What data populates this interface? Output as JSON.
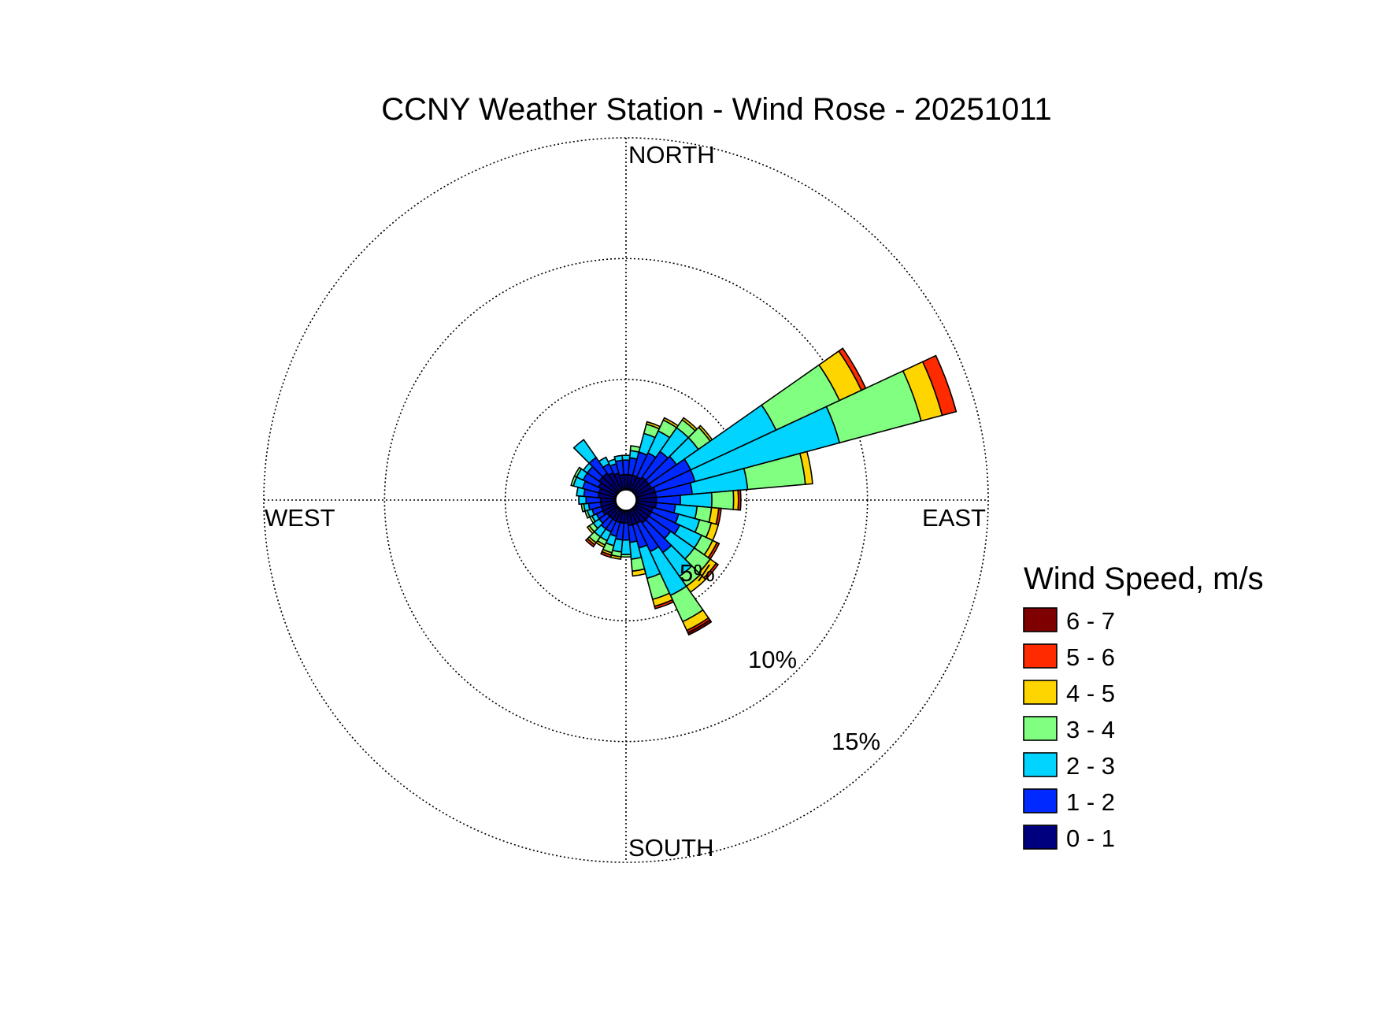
{
  "chart_data": {
    "type": "windrose",
    "title": "CCNY Weather Station - Wind Rose - 20251011",
    "directions": {
      "north": "NORTH",
      "east": "EAST",
      "south": "SOUTH",
      "west": "WEST"
    },
    "rings": [
      {
        "value": 5,
        "label": "5%"
      },
      {
        "value": 10,
        "label": "10%"
      },
      {
        "value": 15,
        "label": "15%"
      }
    ],
    "radial_max": 15,
    "bin_width_deg": 10,
    "legend": {
      "title": "Wind Speed, m/s",
      "bins": [
        {
          "label": "6 - 7",
          "color": "#7f0000"
        },
        {
          "label": "5 - 6",
          "color": "#ff2a00"
        },
        {
          "label": "4 - 5",
          "color": "#ffd500"
        },
        {
          "label": "3 - 4",
          "color": "#80ff80"
        },
        {
          "label": "2 - 3",
          "color": "#00d4ff"
        },
        {
          "label": "1 - 2",
          "color": "#0029ff"
        },
        {
          "label": "0 - 1",
          "color": "#00007f"
        }
      ]
    },
    "units": "cumulative frequency, %",
    "sectors": [
      {
        "dir": 0,
        "cum": [
          0.6,
          1.2,
          1.4
        ]
      },
      {
        "dir": 10,
        "cum": [
          0.6,
          1.3,
          1.6,
          1.8
        ]
      },
      {
        "dir": 20,
        "cum": [
          0.6,
          1.6,
          2.4,
          2.8,
          2.9
        ]
      },
      {
        "dir": 30,
        "cum": [
          0.6,
          1.7,
          2.7,
          3.2,
          3.3
        ]
      },
      {
        "dir": 40,
        "cum": [
          0.7,
          2.0,
          3.2,
          3.6,
          3.7
        ]
      },
      {
        "dir": 50,
        "cum": [
          0.7,
          2.1,
          3.2,
          3.8,
          3.9
        ]
      },
      {
        "dir": 60,
        "cum": [
          0.7,
          2.5,
          6.4,
          9.3,
          10.3,
          10.5
        ]
      },
      {
        "dir": 70,
        "cum": [
          0.8,
          2.5,
          8.7,
          12.2,
          13.1,
          13.7
        ]
      },
      {
        "dir": 80,
        "cum": [
          0.8,
          2.3,
          4.6,
          7.0,
          7.3
        ]
      },
      {
        "dir": 90,
        "cum": [
          0.8,
          1.8,
          3.1,
          4.0,
          4.2,
          4.3
        ]
      },
      {
        "dir": 100,
        "cum": [
          0.8,
          1.6,
          2.5,
          3.1,
          3.4,
          3.5
        ]
      },
      {
        "dir": 110,
        "cum": [
          0.7,
          1.8,
          2.7,
          3.2,
          3.5
        ]
      },
      {
        "dir": 120,
        "cum": [
          0.7,
          2.0,
          3.0,
          3.5,
          3.7,
          3.8
        ]
      },
      {
        "dir": 130,
        "cum": [
          0.7,
          1.8,
          3.0,
          3.8,
          4.1,
          4.2
        ]
      },
      {
        "dir": 140,
        "cum": [
          0.7,
          2.2,
          3.4,
          3.9,
          4.2
        ]
      },
      {
        "dir": 150,
        "cum": [
          0.6,
          1.9,
          3.9,
          5.1,
          5.5,
          5.6,
          5.7
        ]
      },
      {
        "dir": 160,
        "cum": [
          0.6,
          1.6,
          2.9,
          3.8,
          4.1,
          4.2
        ]
      },
      {
        "dir": 170,
        "cum": [
          0.6,
          1.3,
          2.0,
          2.5,
          2.7
        ]
      },
      {
        "dir": 180,
        "cum": [
          0.5,
          1.2,
          1.8,
          1.9
        ]
      },
      {
        "dir": 190,
        "cum": [
          0.5,
          1.2,
          1.7,
          1.9,
          2.0
        ]
      },
      {
        "dir": 200,
        "cum": [
          0.5,
          1.1,
          1.5,
          1.8,
          1.9,
          2.0
        ]
      },
      {
        "dir": 210,
        "cum": [
          0.5,
          1.0,
          1.4,
          1.6,
          1.7
        ]
      },
      {
        "dir": 220,
        "cum": [
          0.5,
          1.0,
          1.4,
          1.7,
          1.8,
          1.9
        ]
      },
      {
        "dir": 230,
        "cum": [
          0.5,
          0.9,
          1.2,
          1.4,
          1.5
        ]
      },
      {
        "dir": 240,
        "cum": [
          0.6,
          0.9,
          1.1,
          1.2
        ]
      },
      {
        "dir": 250,
        "cum": [
          0.6,
          1.0,
          1.2,
          1.3
        ]
      },
      {
        "dir": 260,
        "cum": [
          0.6,
          1.1,
          1.3,
          1.4
        ]
      },
      {
        "dir": 270,
        "cum": [
          0.6,
          1.2,
          1.5
        ]
      },
      {
        "dir": 280,
        "cum": [
          0.7,
          1.3,
          1.6
        ]
      },
      {
        "dir": 290,
        "cum": [
          0.7,
          1.4,
          1.8,
          1.9
        ]
      },
      {
        "dir": 300,
        "cum": [
          0.8,
          1.5,
          1.8,
          1.9
        ]
      },
      {
        "dir": 310,
        "cum": [
          0.9,
          1.5,
          1.7
        ]
      },
      {
        "dir": 320,
        "cum": [
          0.9,
          1.7,
          2.6
        ]
      },
      {
        "dir": 330,
        "cum": [
          0.8,
          1.2,
          1.5
        ]
      },
      {
        "dir": 340,
        "cum": [
          0.7,
          1.1,
          1.3
        ]
      },
      {
        "dir": 350,
        "cum": [
          0.6,
          1.2,
          1.4
        ]
      }
    ]
  }
}
